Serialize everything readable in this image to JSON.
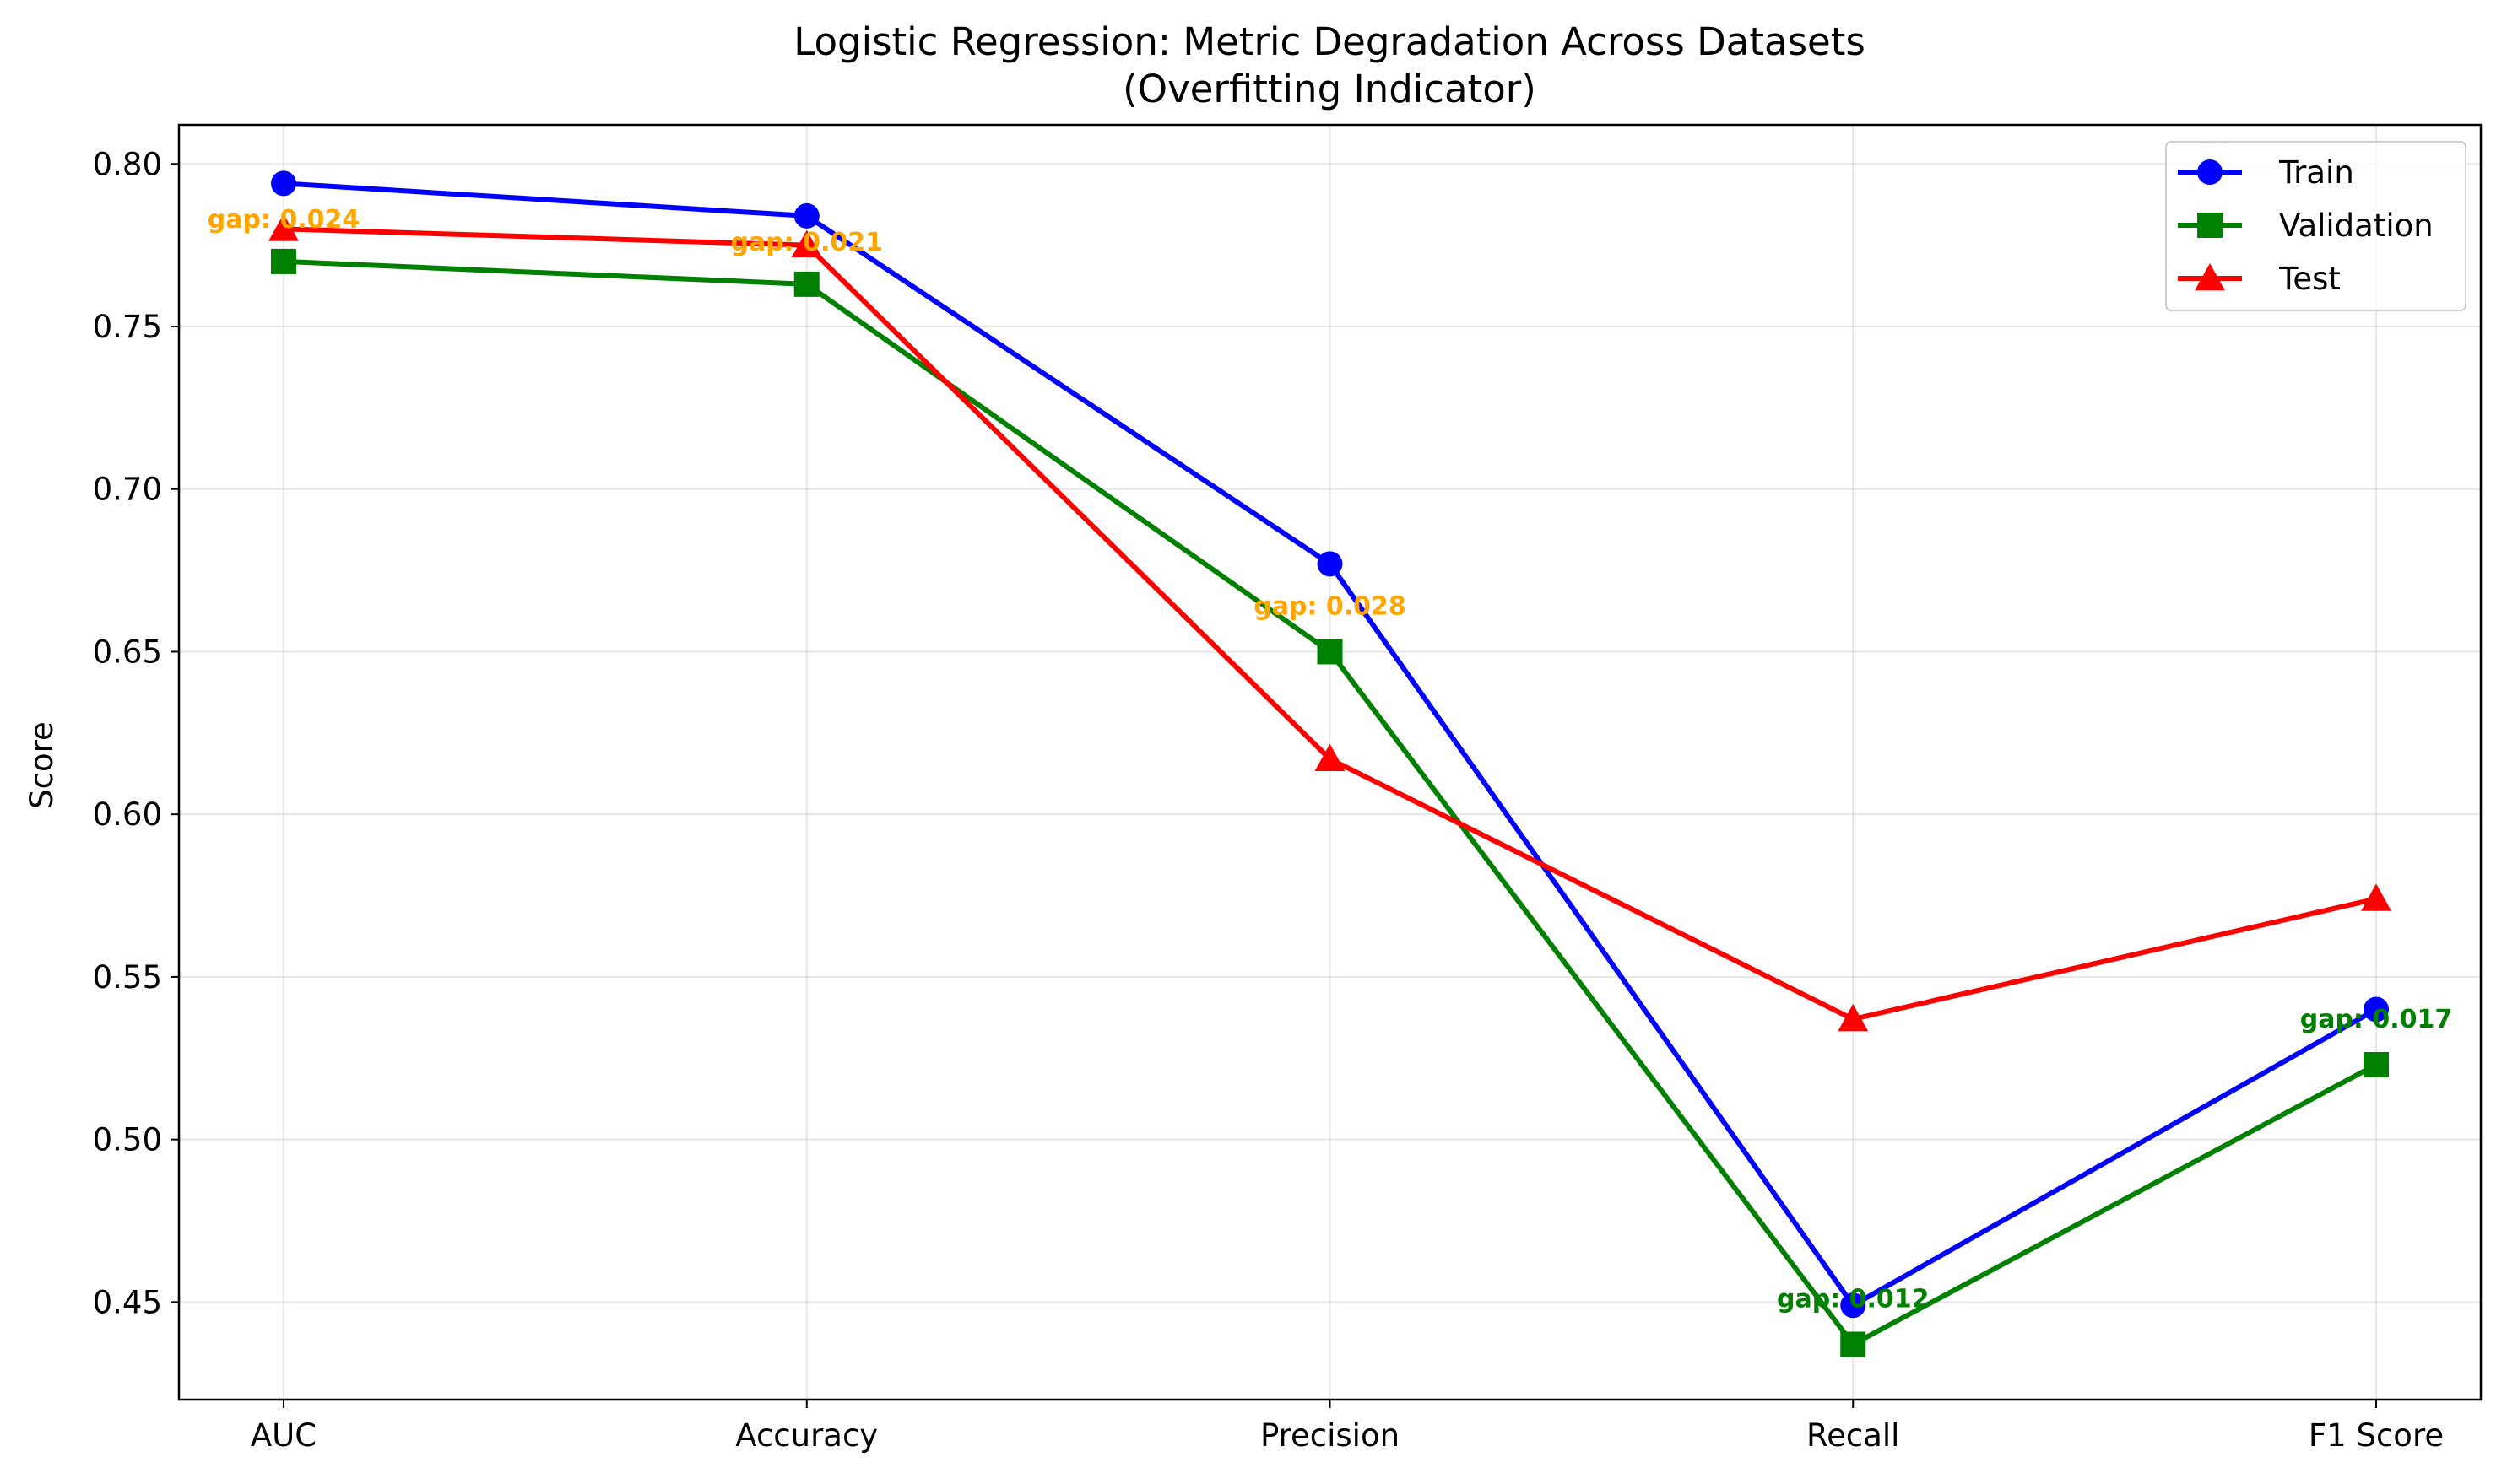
{
  "chart_data": {
    "type": "line",
    "title": "Logistic Regression: Metric Degradation Across Datasets",
    "subtitle": "(Overfitting Indicator)",
    "xlabel": "",
    "ylabel": "Score",
    "categories": [
      "AUC",
      "Accuracy",
      "Precision",
      "Recall",
      "F1 Score"
    ],
    "ylim": [
      0.42,
      0.812
    ],
    "yticks": [
      0.45,
      0.5,
      0.55,
      0.6,
      0.65,
      0.7,
      0.75,
      0.8
    ],
    "ytick_labels": [
      "0.45",
      "0.50",
      "0.55",
      "0.60",
      "0.65",
      "0.70",
      "0.75",
      "0.80"
    ],
    "grid": true,
    "legend_position": "top-right",
    "series": [
      {
        "name": "Train",
        "color": "#0000ff",
        "marker": "circle",
        "values": [
          0.794,
          0.784,
          0.677,
          0.449,
          0.54
        ]
      },
      {
        "name": "Validation",
        "color": "#008000",
        "marker": "square",
        "values": [
          0.77,
          0.763,
          0.65,
          0.437,
          0.523
        ]
      },
      {
        "name": "Test",
        "color": "#ff0000",
        "marker": "triangle",
        "values": [
          0.78,
          0.775,
          0.617,
          0.537,
          0.574
        ]
      }
    ],
    "annotations": [
      {
        "text": "gap: 0.024",
        "category": "AUC",
        "y": 0.783,
        "color": "#ffa500"
      },
      {
        "text": "gap: 0.021",
        "category": "Accuracy",
        "y": 0.776,
        "color": "#ffa500"
      },
      {
        "text": "gap: 0.028",
        "category": "Precision",
        "y": 0.664,
        "color": "#ffa500"
      },
      {
        "text": "gap: 0.012",
        "category": "Recall",
        "y": 0.451,
        "color": "#008000"
      },
      {
        "text": "gap: 0.017",
        "category": "F1 Score",
        "y": 0.537,
        "color": "#008000"
      }
    ]
  }
}
